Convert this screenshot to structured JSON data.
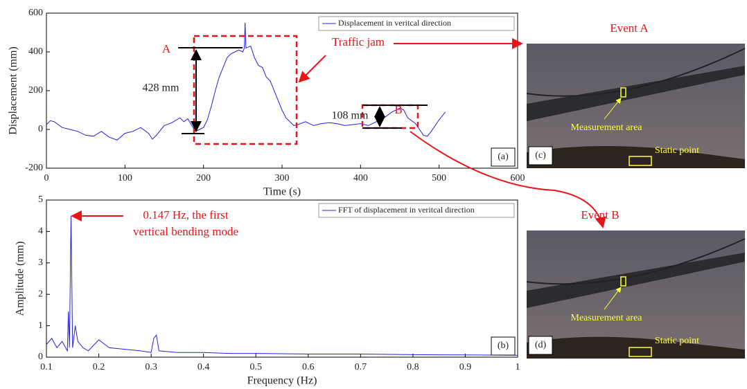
{
  "chart_data": [
    {
      "type": "line",
      "xlabel": "Time (s)",
      "ylabel": "Displacement (mm)",
      "panel": "(a)",
      "legend_position": "upper right",
      "grid": false,
      "xlim": [
        0,
        600
      ],
      "ylim": [
        -200,
        600
      ],
      "xticks": [
        0,
        100,
        200,
        300,
        400,
        500,
        600
      ],
      "yticks": [
        -200,
        0,
        200,
        400,
        600
      ],
      "annotations": [
        "A",
        "428 mm",
        "B",
        "108 mm",
        "Traffic jam"
      ],
      "series": [
        {
          "name": "Displacement in veritcal direction",
          "color": "#2020e0",
          "x": [
            0,
            5,
            10,
            20,
            30,
            40,
            50,
            60,
            70,
            80,
            90,
            100,
            110,
            120,
            130,
            135,
            140,
            150,
            160,
            170,
            175,
            180,
            185,
            190,
            195,
            200,
            205,
            210,
            215,
            220,
            225,
            230,
            235,
            240,
            245,
            250,
            252,
            253,
            254,
            260,
            265,
            270,
            275,
            280,
            285,
            290,
            295,
            300,
            305,
            310,
            315,
            320,
            330,
            340,
            350,
            360,
            370,
            380,
            390,
            400,
            410,
            420,
            430,
            440,
            450,
            455,
            460,
            470,
            480,
            485,
            490,
            500,
            508
          ],
          "values": [
            25,
            45,
            40,
            10,
            0,
            -10,
            -30,
            -35,
            -10,
            -40,
            -55,
            -20,
            -10,
            10,
            -20,
            -50,
            -30,
            20,
            35,
            60,
            40,
            55,
            20,
            -10,
            0,
            10,
            50,
            120,
            200,
            270,
            320,
            370,
            390,
            400,
            410,
            400,
            420,
            550,
            420,
            430,
            370,
            330,
            320,
            270,
            250,
            200,
            150,
            100,
            60,
            40,
            20,
            25,
            40,
            20,
            30,
            35,
            30,
            20,
            25,
            30,
            20,
            40,
            60,
            90,
            110,
            100,
            60,
            30,
            -30,
            -35,
            -10,
            50,
            90
          ]
        }
      ]
    },
    {
      "type": "line",
      "xlabel": "Frequency (Hz)",
      "ylabel": "Amplitude (mm)",
      "panel": "(b)",
      "legend_position": "upper right",
      "grid": false,
      "xlim": [
        0.1,
        1
      ],
      "ylim": [
        0,
        5
      ],
      "xticks": [
        0.1,
        0.2,
        0.3,
        0.4,
        0.5,
        0.6,
        0.7,
        0.8,
        0.9,
        1
      ],
      "yticks": [
        0,
        1,
        2,
        3,
        4,
        5
      ],
      "annotations": [
        "0.147 Hz, the first",
        "vertical bending mode"
      ],
      "series": [
        {
          "name": "FFT of displacement in veritcal direction",
          "color": "#2020e0",
          "x": [
            0.1,
            0.11,
            0.12,
            0.13,
            0.14,
            0.142,
            0.144,
            0.147,
            0.15,
            0.155,
            0.16,
            0.17,
            0.18,
            0.2,
            0.22,
            0.25,
            0.28,
            0.3,
            0.305,
            0.31,
            0.315,
            0.35,
            0.4,
            0.45,
            0.5,
            0.6,
            0.7,
            0.8,
            0.9,
            1
          ],
          "values": [
            0.4,
            0.6,
            0.3,
            0.5,
            0.2,
            1.45,
            0.3,
            4.5,
            0.3,
            1.0,
            0.5,
            0.3,
            0.2,
            0.55,
            0.3,
            0.25,
            0.2,
            0.15,
            0.6,
            0.7,
            0.2,
            0.15,
            0.15,
            0.12,
            0.12,
            0.1,
            0.1,
            0.08,
            0.07,
            0.06
          ]
        }
      ]
    }
  ],
  "photos": [
    {
      "title": "Event A",
      "panel": "(c)",
      "measurement": "Measurement area",
      "static": "Static point"
    },
    {
      "title": "Event B",
      "panel": "(d)",
      "measurement": "Measurement area",
      "static": "Static point"
    }
  ]
}
